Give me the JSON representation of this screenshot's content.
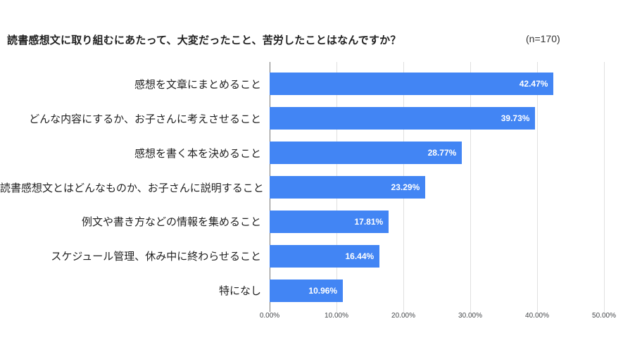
{
  "header": {
    "title": "読書感想文に取り組むにあたって、大変だったこと、苦労したことはなんですか？",
    "sample_size": "(n=170)"
  },
  "chart_data": {
    "type": "bar",
    "orientation": "horizontal",
    "title": "読書感想文に取り組むにあたって、大変だったこと、苦労したことはなんですか？",
    "sample_note": "(n=170)",
    "categories": [
      "感想を文章にまとめること",
      "どんな内容にするか、お子さんに考えさせること",
      "感想を書く本を決めること",
      "読書感想文とはどんなものか、お子さんに説明すること",
      "例文や書き方などの情報を集めること",
      "スケジュール管理、休み中に終わらせること",
      "特になし"
    ],
    "values": [
      42.47,
      39.73,
      28.77,
      23.29,
      17.81,
      16.44,
      10.96
    ],
    "value_labels": [
      "42.47%",
      "39.73%",
      "28.77%",
      "23.29%",
      "17.81%",
      "16.44%",
      "10.96%"
    ],
    "x_ticks": [
      "0.00%",
      "10.00%",
      "20.00%",
      "30.00%",
      "40.00%",
      "50.00%"
    ],
    "x_tick_values": [
      0,
      10,
      20,
      30,
      40,
      50
    ],
    "xlim": [
      0,
      50
    ],
    "grid": true,
    "legend": "none",
    "colors": {
      "bar": "#4285f4",
      "value_label": "#ffffff",
      "gridline": "#e0e0e0",
      "baseline": "#757575"
    }
  }
}
